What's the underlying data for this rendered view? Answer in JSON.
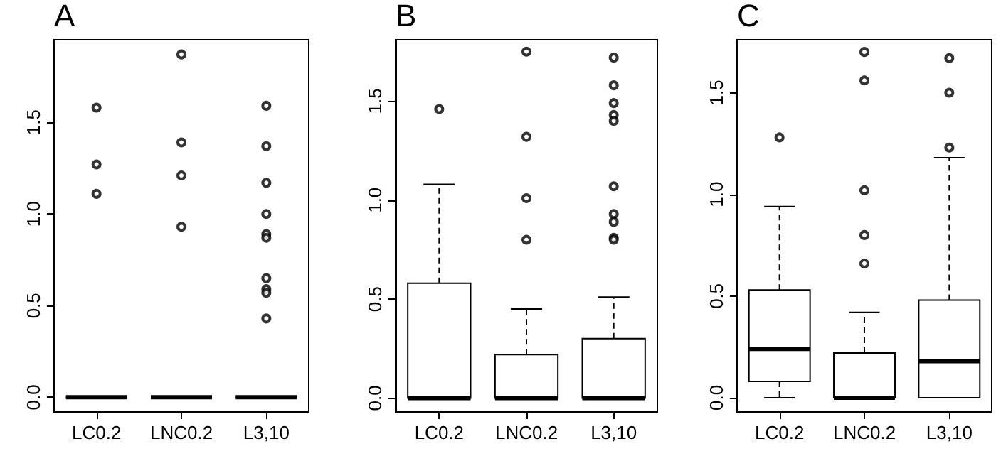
{
  "chart_data": [
    {
      "type": "box",
      "title": "A",
      "categories": [
        "LC0.2",
        "LNC0.2",
        "L3,10"
      ],
      "boxes": [
        {
          "low": 0,
          "q1": 0,
          "median": 0,
          "q3": 0,
          "high": 0,
          "outliers": [
            1.58,
            1.27,
            1.11
          ]
        },
        {
          "low": 0,
          "q1": 0,
          "median": 0,
          "q3": 0,
          "high": 0,
          "outliers": [
            1.87,
            1.39,
            1.21,
            0.93
          ]
        },
        {
          "low": 0,
          "q1": 0,
          "median": 0,
          "q3": 0,
          "high": 0,
          "outliers": [
            1.59,
            1.37,
            1.17,
            1.0,
            0.89,
            0.87,
            0.65,
            0.59,
            0.57,
            0.43
          ]
        }
      ],
      "ylim": [
        -0.08,
        1.95
      ],
      "yticks": [
        {
          "value": 0,
          "label": "0.0"
        },
        {
          "value": 0.5,
          "label": "0.5"
        },
        {
          "value": 1,
          "label": "1.0"
        },
        {
          "value": 1.5,
          "label": "1.5"
        }
      ]
    },
    {
      "type": "box",
      "title": "B",
      "categories": [
        "LC0.2",
        "LNC0.2",
        "L3,10"
      ],
      "boxes": [
        {
          "low": 0,
          "q1": 0,
          "median": 0,
          "q3": 0.58,
          "high": 1.08,
          "outliers": [
            1.46
          ]
        },
        {
          "low": 0,
          "q1": 0,
          "median": 0,
          "q3": 0.22,
          "high": 0.45,
          "outliers": [
            1.75,
            1.32,
            1.01,
            0.8
          ]
        },
        {
          "low": 0,
          "q1": 0,
          "median": 0,
          "q3": 0.3,
          "high": 0.51,
          "outliers": [
            1.72,
            1.58,
            1.49,
            1.43,
            1.4,
            1.07,
            0.93,
            0.89,
            0.81,
            0.8
          ]
        }
      ],
      "ylim": [
        -0.07,
        1.81
      ],
      "yticks": [
        {
          "value": 0,
          "label": "0.0"
        },
        {
          "value": 0.5,
          "label": "0.5"
        },
        {
          "value": 1,
          "label": "1.0"
        },
        {
          "value": 1.5,
          "label": "1.5"
        }
      ]
    },
    {
      "type": "box",
      "title": "C",
      "categories": [
        "LC0.2",
        "LNC0.2",
        "L3,10"
      ],
      "boxes": [
        {
          "low": 0,
          "q1": 0.08,
          "median": 0.24,
          "q3": 0.53,
          "high": 0.94,
          "outliers": [
            1.28
          ]
        },
        {
          "low": 0,
          "q1": 0,
          "median": 0,
          "q3": 0.22,
          "high": 0.42,
          "outliers": [
            1.7,
            1.56,
            1.02,
            0.8,
            0.66
          ]
        },
        {
          "low": 0,
          "q1": 0,
          "median": 0.18,
          "q3": 0.48,
          "high": 1.18,
          "outliers": [
            1.67,
            1.5,
            1.23
          ]
        }
      ],
      "ylim": [
        -0.07,
        1.76
      ],
      "yticks": [
        {
          "value": 0,
          "label": "0.0"
        },
        {
          "value": 0.5,
          "label": "0.5"
        },
        {
          "value": 1,
          "label": "1.0"
        },
        {
          "value": 1.5,
          "label": "1.5"
        }
      ]
    }
  ]
}
